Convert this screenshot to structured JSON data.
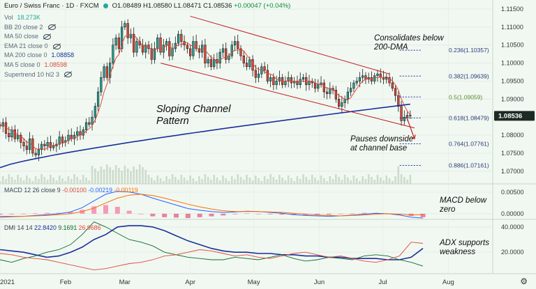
{
  "header": {
    "title": "Euro / Swiss Franc · 1D · FXCM",
    "open": "O1.08489",
    "high": "H1.08580",
    "low": "L1.08471",
    "close": "C1.08536",
    "change": "+0.00047 (+0.04%)"
  },
  "legend": [
    {
      "label": "Vol",
      "value": "18.273K",
      "color": "#26a69a",
      "hidden": false
    },
    {
      "label": "BB 20 close 2",
      "value": "",
      "color": "",
      "hidden": true
    },
    {
      "label": "MA 50 close",
      "value": "",
      "color": "",
      "hidden": true
    },
    {
      "label": "EMA 21 close 0",
      "value": "",
      "color": "",
      "hidden": true
    },
    {
      "label": "MA 200 close 0",
      "value": "1.08858",
      "color": "#1a2f9c",
      "hidden": false
    },
    {
      "label": "MA 5 close 0",
      "value": "1.08598",
      "color": "#e0483a",
      "hidden": false
    },
    {
      "label": "Supertrend 10 hl2 3",
      "value": "",
      "color": "",
      "hidden": true
    }
  ],
  "macd_legend": {
    "label": "MACD 12 26 close 9",
    "v1": "-0.00100",
    "v2": "-0.00219",
    "v3": "-0.00119"
  },
  "dmi_legend": {
    "label": "DMI 14 14",
    "v1": "22.8420",
    "v2": "9.1691",
    "v3": "26.9686"
  },
  "annotations": {
    "consolidates": "Consolidates below\n200-DMA",
    "sloping": "Sloping Channel\nPattern",
    "pauses": "Pauses downside\nat channel base",
    "macd": "MACD below\nzero",
    "adx": "ADX supports\nweakness"
  },
  "price_label": "1.08536",
  "colors": {
    "up": "#26a69a",
    "down": "#e0483a",
    "ma200": "#1a2f9c",
    "ma5": "#e0483a",
    "channel": "#c0191d"
  },
  "chart_data": [
    {
      "type": "candlestick",
      "title": "Euro / Swiss Franc, 1D, FXCM",
      "x": [
        "2021-01",
        "2021-02",
        "2021-03",
        "2021-04",
        "2021-05",
        "2021-06",
        "2021-07",
        "2021-08"
      ],
      "ylim": [
        1.0665,
        1.1175
      ],
      "yticks": [
        "1.11500",
        "1.11000",
        "1.10500",
        "1.10000",
        "1.09500",
        "1.09000",
        "1.08500",
        "1.08000",
        "1.07500",
        "1.07000"
      ],
      "xticks": [
        "2021",
        "Feb",
        "Mar",
        "Apr",
        "May",
        "Jun",
        "Jul",
        "Aug"
      ],
      "close_series": [
        1.0825,
        1.0835,
        1.0805,
        1.0795,
        1.0815,
        1.079,
        1.08,
        1.078,
        1.077,
        1.076,
        1.079,
        1.075,
        1.0745,
        1.076,
        1.0775,
        1.077,
        1.078,
        1.0765,
        1.077,
        1.0775,
        1.0795,
        1.078,
        1.0785,
        1.08,
        1.079,
        1.08,
        1.081,
        1.08,
        1.0815,
        1.0835,
        1.083,
        1.085,
        1.088,
        1.092,
        1.096,
        1.099,
        1.096,
        1.1,
        1.105,
        1.107,
        1.104,
        1.11,
        1.111,
        1.107,
        1.108,
        1.103,
        1.106,
        1.105,
        1.103,
        1.105,
        1.104,
        1.101,
        1.104,
        1.107,
        1.103,
        1.105,
        1.106,
        1.102,
        1.104,
        1.1055,
        1.108,
        1.106,
        1.105,
        1.104,
        1.102,
        1.106,
        1.104,
        1.103,
        1.105,
        1.1,
        1.101,
        1.099,
        1.101,
        1.1,
        1.103,
        1.104,
        1.101,
        1.102,
        1.105,
        1.106,
        1.104,
        1.102,
        1.1,
        1.099,
        1.101,
        1.098,
        1.096,
        1.097,
        1.099,
        1.098,
        1.095,
        1.096,
        1.094,
        1.095,
        1.096,
        1.094,
        1.095,
        1.096,
        1.0945,
        1.095,
        1.094,
        1.0955,
        1.096,
        1.094,
        1.095,
        1.0945,
        1.093,
        1.094,
        1.0945,
        1.092,
        1.0915,
        1.093,
        1.0925,
        1.09,
        1.088,
        1.089,
        1.09,
        1.092,
        1.093,
        1.0945,
        1.095,
        1.096,
        1.0965,
        1.0955,
        1.096,
        1.095,
        1.0965,
        1.097,
        1.096,
        1.0955,
        1.096,
        1.0945,
        1.093,
        1.091,
        1.088,
        1.084,
        1.085,
        1.0855,
        1.0853
      ],
      "ma200_endpoints": [
        1.071,
        1.0886
      ],
      "channel_upper": [
        1.113,
        1.097
      ],
      "channel_lower": [
        1.1,
        1.082
      ],
      "fib_levels": [
        {
          "label": "0.236(1.10357)",
          "value": 1.10357
        },
        {
          "label": "0.382(1.09639)",
          "value": 1.09639
        },
        {
          "label": "0.5(1.09059)",
          "value": 1.09059
        },
        {
          "label": "0.618(1.08479)",
          "value": 1.08479
        },
        {
          "label": "0.764(1.07761)",
          "value": 1.07761
        },
        {
          "label": "0.886(1.07161)",
          "value": 1.07161
        }
      ]
    },
    {
      "type": "line",
      "title": "MACD 12 26 close 9",
      "ylim": [
        -0.0013,
        0.0069
      ],
      "yticks": [
        "0.00500",
        "0.00000"
      ],
      "series": [
        {
          "values": [
            -0.0008,
            -0.0007,
            -0.0006,
            -0.0004,
            -0.0002,
            0.0,
            0.0004,
            0.0014,
            0.003,
            0.0045,
            0.0052,
            0.005,
            0.0045,
            0.0036,
            0.0028,
            0.002,
            0.0012,
            0.0008,
            0.0005,
            0.0003,
            0.0004,
            0.0006,
            0.0005,
            0.0003,
            0.0001,
            -0.0002,
            -0.0004,
            -0.0005,
            -0.0006,
            -0.0005,
            -0.0003,
            -0.0001,
            0.0001,
            0.0,
            -0.0003,
            -0.0008,
            -0.001
          ]
        },
        {
          "values": [
            -0.0006,
            -0.0006,
            -0.0006,
            -0.0005,
            -0.0004,
            -0.0002,
            0.0,
            0.0005,
            0.0013,
            0.0025,
            0.0036,
            0.0043,
            0.0045,
            0.0042,
            0.0036,
            0.0029,
            0.0022,
            0.0016,
            0.0011,
            0.0007,
            0.0005,
            0.0005,
            0.0005,
            0.0004,
            0.0003,
            0.0001,
            -0.0001,
            -0.0003,
            -0.0004,
            -0.0005,
            -0.0004,
            -0.0003,
            -0.0001,
            0.0,
            -0.0001,
            -0.0003,
            -0.0002
          ]
        }
      ]
    },
    {
      "type": "line",
      "title": "DMI 14 14",
      "ylim": [
        3,
        46
      ],
      "yticks": [
        "40.0000",
        "20.0000"
      ],
      "series": [
        {
          "values": [
            22,
            21,
            20,
            18,
            16,
            17,
            20,
            24,
            30,
            34,
            40,
            41,
            41,
            40,
            37,
            33,
            29,
            26,
            23,
            21,
            20,
            20,
            19,
            19,
            18,
            18,
            17,
            17,
            16,
            16,
            15,
            15,
            15,
            14,
            14,
            16,
            23
          ]
        },
        {
          "values": [
            14,
            12,
            15,
            17,
            20,
            22,
            26,
            34,
            44,
            40,
            35,
            30,
            28,
            25,
            20,
            18,
            16,
            15,
            14,
            14,
            16,
            15,
            14,
            16,
            18,
            15,
            13,
            14,
            16,
            15,
            14,
            17,
            18,
            17,
            14,
            12,
            9
          ]
        },
        {
          "values": [
            19,
            18,
            16,
            15,
            14,
            12,
            10,
            8,
            6,
            7,
            9,
            11,
            12,
            14,
            17,
            18,
            20,
            22,
            21,
            19,
            17,
            18,
            16,
            15,
            17,
            19,
            20,
            18,
            16,
            17,
            15,
            13,
            12,
            14,
            17,
            28,
            27
          ]
        }
      ]
    }
  ]
}
